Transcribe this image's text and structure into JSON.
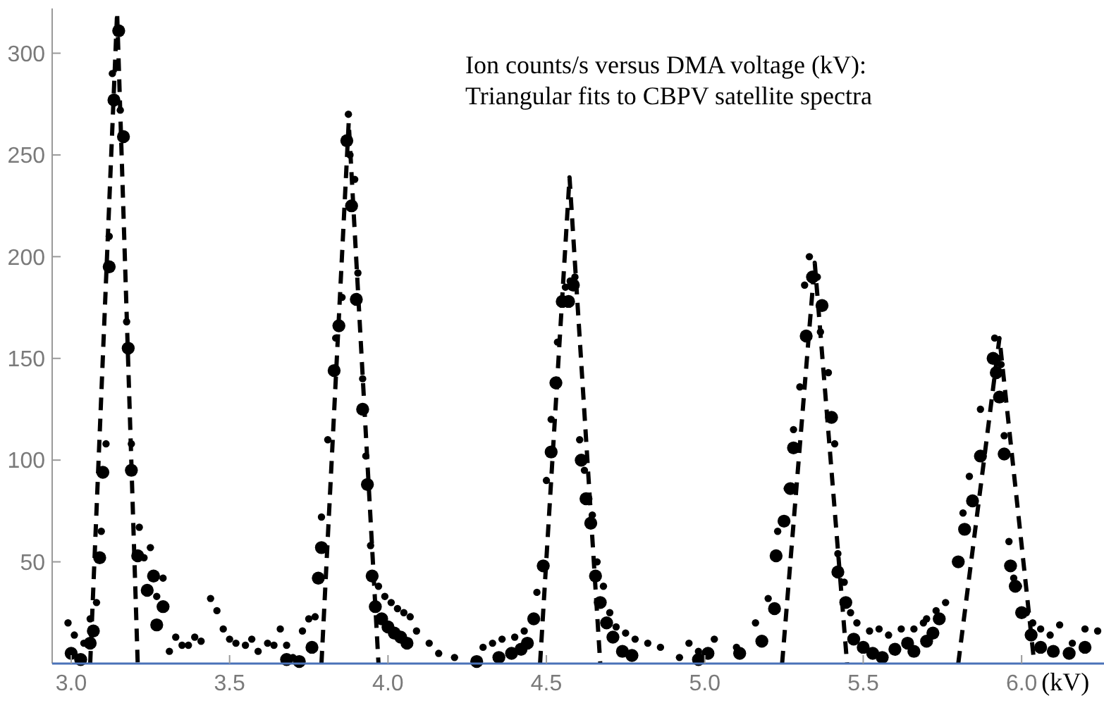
{
  "chart_data": {
    "type": "scatter",
    "title": "Ion counts/s versus DMA voltage (kV):\nTriangular fits to CBPV satellite spectra",
    "xlabel": "(kV)",
    "xlim": [
      2.94,
      6.26
    ],
    "ylim": [
      0,
      322
    ],
    "xticks": [
      {
        "value": 3,
        "label": "3.0"
      },
      {
        "value": 3.5,
        "label": "3.5"
      },
      {
        "value": 4,
        "label": "4.0"
      },
      {
        "value": 4.5,
        "label": "4.5"
      },
      {
        "value": 5,
        "label": "5.0"
      },
      {
        "value": 5.5,
        "label": "5.5"
      },
      {
        "value": 6,
        "label": "6.0"
      }
    ],
    "yticks": [
      50,
      100,
      150,
      200,
      250,
      300
    ],
    "grid": false,
    "marker": "circle",
    "series": [
      {
        "color": "#000000",
        "x": [
          3.0,
          3.03,
          3.06,
          3.07,
          3.09,
          3.1,
          3.12,
          3.135,
          3.15,
          3.165,
          3.18,
          3.19,
          3.21,
          3.24,
          3.26,
          3.27,
          3.29,
          3.68,
          3.72,
          3.76,
          3.78,
          3.79,
          3.83,
          3.845,
          3.87,
          3.885,
          3.9,
          3.92,
          3.935,
          3.95,
          3.96,
          3.98,
          4.0,
          4.02,
          4.04,
          4.06,
          4.28,
          4.35,
          4.39,
          4.42,
          4.44,
          4.46,
          4.49,
          4.515,
          4.53,
          4.55,
          4.57,
          4.585,
          4.61,
          4.625,
          4.64,
          4.655,
          4.67,
          4.69,
          4.71,
          4.74,
          4.77,
          4.98,
          5.01,
          5.11,
          5.18,
          5.22,
          5.225,
          5.25,
          5.27,
          5.28,
          5.32,
          5.34,
          5.37,
          5.4,
          5.42,
          5.445,
          5.47,
          5.5,
          5.53,
          5.56,
          5.6,
          5.64,
          5.66,
          5.7,
          5.72,
          5.74,
          5.8,
          5.82,
          5.845,
          5.87,
          5.91,
          5.92,
          5.93,
          5.945,
          5.965,
          5.98,
          6.0,
          6.03,
          6.06,
          6.1,
          6.15,
          6.2
        ],
        "values": [
          5,
          2,
          10,
          16,
          52,
          94,
          195,
          277,
          311,
          259,
          155,
          95,
          53,
          36,
          43,
          19,
          28,
          2,
          1,
          8,
          42,
          57,
          144,
          166,
          257,
          225,
          179,
          125,
          88,
          43,
          28,
          22,
          18,
          15,
          13,
          10,
          1,
          3,
          5,
          7,
          10,
          22,
          48,
          104,
          138,
          178,
          178,
          186,
          100,
          81,
          69,
          43,
          30,
          20,
          13,
          6,
          4,
          2,
          5,
          5,
          11,
          27,
          53,
          70,
          86,
          106,
          161,
          190,
          176,
          121,
          45,
          30,
          12,
          8,
          5,
          3,
          7,
          10,
          6,
          11,
          15,
          22,
          50,
          66,
          80,
          102,
          150,
          143,
          131,
          103,
          48,
          38,
          25,
          14,
          8,
          6,
          5,
          8
        ]
      },
      {
        "color": "#000000",
        "x": [
          2.99,
          3.01,
          3.04,
          3.06,
          3.08,
          3.095,
          3.11,
          3.12,
          3.13,
          3.155,
          3.175,
          3.19,
          3.215,
          3.23,
          3.25,
          3.27,
          3.29,
          3.31,
          3.33,
          3.35,
          3.37,
          3.39,
          3.41,
          3.44,
          3.46,
          3.48,
          3.5,
          3.52,
          3.55,
          3.57,
          3.59,
          3.62,
          3.64,
          3.66,
          3.68,
          3.7,
          3.73,
          3.75,
          3.77,
          3.79,
          3.81,
          3.835,
          3.855,
          3.875,
          3.88,
          3.895,
          3.905,
          3.92,
          3.93,
          3.945,
          3.97,
          3.99,
          4.01,
          4.03,
          4.05,
          4.07,
          4.09,
          4.13,
          4.16,
          4.21,
          4.3,
          4.33,
          4.36,
          4.4,
          4.43,
          4.47,
          4.5,
          4.515,
          4.535,
          4.56,
          4.575,
          4.59,
          4.605,
          4.62,
          4.645,
          4.66,
          4.68,
          4.7,
          4.72,
          4.75,
          4.78,
          4.82,
          4.86,
          4.92,
          4.98,
          4.95,
          5.03,
          5.1,
          5.16,
          5.2,
          5.23,
          5.26,
          5.28,
          5.3,
          5.315,
          5.33,
          5.355,
          5.365,
          5.39,
          5.41,
          5.42,
          5.44,
          5.46,
          5.48,
          5.52,
          5.55,
          5.58,
          5.62,
          5.66,
          5.69,
          5.7,
          5.73,
          5.76,
          5.815,
          5.835,
          5.87,
          5.915,
          5.925,
          5.935,
          5.945,
          5.96,
          5.975,
          5.99,
          6.015,
          6.035,
          6.06,
          6.09,
          6.12,
          6.16,
          6.2,
          6.24
        ],
        "values": [
          20,
          14,
          10,
          22,
          30,
          65,
          108,
          210,
          290,
          272,
          168,
          108,
          67,
          52,
          57,
          33,
          42,
          6,
          13,
          9,
          9,
          13,
          11,
          32,
          26,
          17,
          12,
          10,
          9,
          12,
          6,
          10,
          9,
          17,
          9,
          3,
          16,
          22,
          23,
          72,
          110,
          160,
          180,
          270,
          250,
          238,
          192,
          140,
          102,
          58,
          38,
          33,
          30,
          27,
          25,
          23,
          16,
          10,
          5,
          3,
          8,
          10,
          12,
          13,
          16,
          35,
          90,
          120,
          158,
          185,
          188,
          190,
          110,
          95,
          73,
          50,
          38,
          25,
          18,
          15,
          12,
          10,
          8,
          3,
          6,
          10,
          12,
          8,
          20,
          32,
          65,
          86,
          115,
          136,
          186,
          200,
          190,
          163,
          143,
          108,
          54,
          40,
          25,
          20,
          16,
          17,
          14,
          17,
          17,
          20,
          22,
          26,
          30,
          74,
          92,
          125,
          160,
          150,
          147,
          112,
          60,
          42,
          38,
          25,
          20,
          17,
          14,
          19,
          10,
          17,
          16
        ]
      },
      {
        "type": "line",
        "color": "#000000",
        "line_style": "dashed",
        "marker": "none",
        "x": [
          3.06,
          3.145,
          3.21,
          null,
          3.79,
          3.876,
          3.97,
          null,
          4.48,
          4.573,
          4.67,
          null,
          5.244,
          5.347,
          5.449,
          null,
          5.8,
          5.93,
          6.04
        ],
        "values": [
          0,
          320,
          0,
          null,
          0,
          266,
          0,
          null,
          0,
          239,
          0,
          null,
          0,
          197,
          0,
          null,
          0,
          160,
          0
        ]
      }
    ]
  }
}
